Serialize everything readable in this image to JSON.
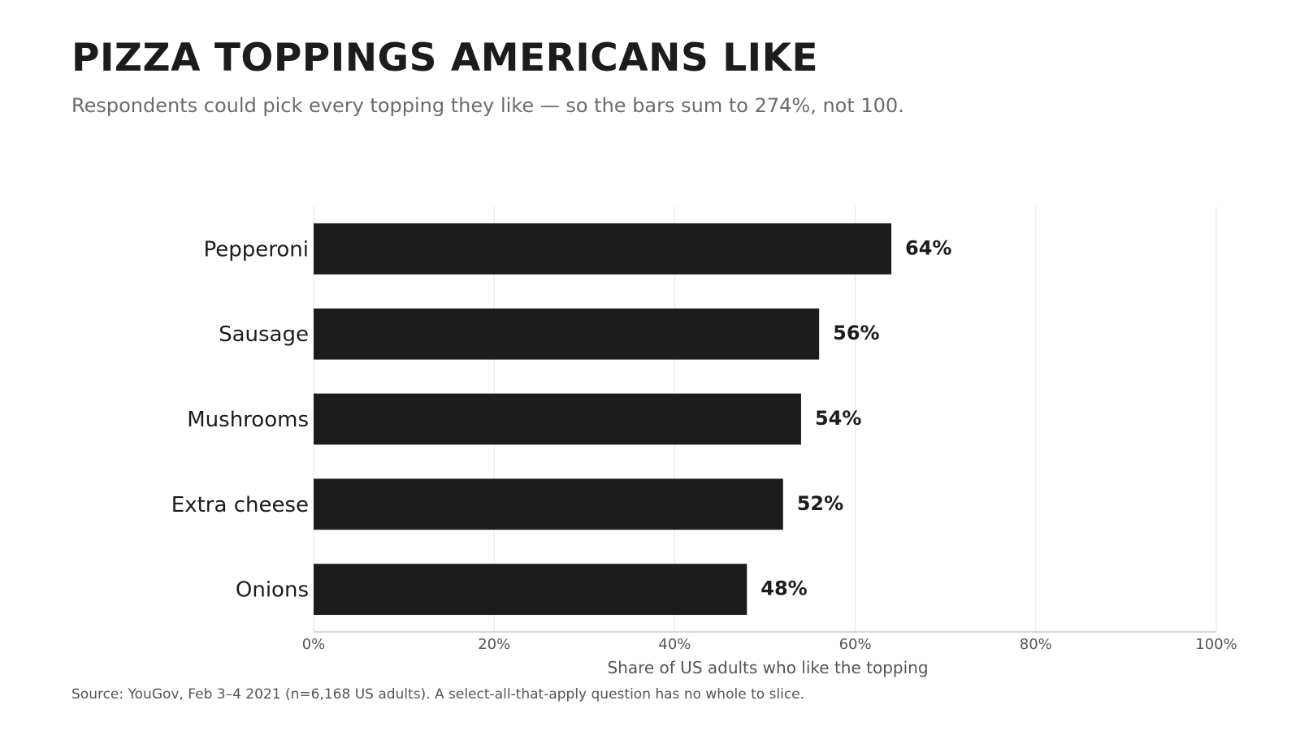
{
  "chart_data": {
    "type": "bar",
    "orientation": "horizontal",
    "title": "PIZZA TOPPINGS AMERICANS LIKE",
    "subtitle": "Respondents could pick every topping they like — so the bars sum to 274%, not 100.",
    "categories": [
      "Pepperoni",
      "Sausage",
      "Mushrooms",
      "Extra cheese",
      "Onions"
    ],
    "values": [
      64,
      56,
      54,
      52,
      48
    ],
    "value_labels": [
      "64%",
      "56%",
      "54%",
      "52%",
      "48%"
    ],
    "xlabel": "Share of US adults who like the topping",
    "ylabel": "",
    "xlim": [
      0,
      100
    ],
    "ticks": [
      0,
      20,
      40,
      60,
      80,
      100
    ],
    "tick_labels": [
      "0%",
      "20%",
      "40%",
      "60%",
      "80%",
      "100%"
    ],
    "grid": "vertical",
    "legend": "none",
    "source": "Source: YouGov, Feb 3–4 2021 (n=6,168 US adults). A select-all-that-apply question has no whole to slice."
  },
  "colors": {
    "bar": "#1c1c1c",
    "text": "#1c1c1c",
    "subtitle": "#6b6b6b",
    "muted": "#555555",
    "grid": "#e6e6e6",
    "axis": "#cccccc"
  }
}
